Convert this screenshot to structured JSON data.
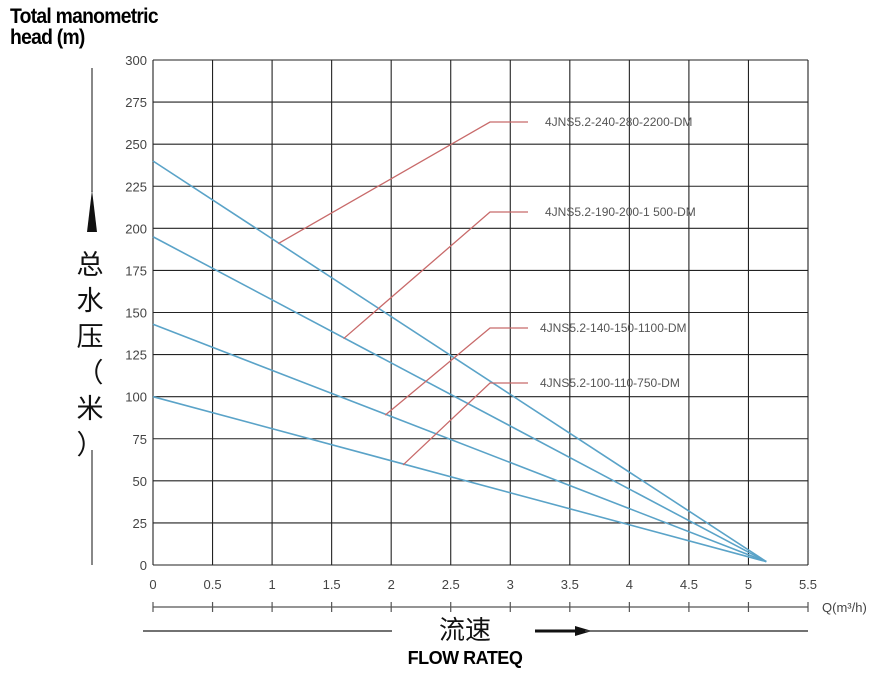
{
  "header": {
    "title_line1": "Total manometric",
    "title_line2": "head (m)",
    "ylabel_cn": [
      "总",
      "水",
      "压",
      "（",
      "米",
      "）"
    ],
    "xlabel_cn": "流速",
    "xlabel_en": "FLOW RATEQ",
    "x_unit": "Q(m³/h)"
  },
  "colors": {
    "series": "#5aa3c8",
    "leader": "#c86a6a",
    "grid": "#222222",
    "axis": "#555555"
  },
  "chart_data": {
    "type": "line",
    "title": "Total manometric head (m)",
    "xlabel": "FLOW RATEQ",
    "ylabel": "总水压（米）",
    "xlim": [
      0,
      5.5
    ],
    "ylim": [
      0,
      300
    ],
    "x_ticks": [
      "0",
      "0.5",
      "1",
      "1.5",
      "2",
      "2.5",
      "3",
      "3.5",
      "4",
      "4.5",
      "5",
      "5.5"
    ],
    "y_ticks": [
      "0",
      "25",
      "50",
      "75",
      "100",
      "125",
      "150",
      "175",
      "200",
      "225",
      "250",
      "275",
      "300"
    ],
    "grid": true,
    "series": [
      {
        "name": "4JNS5.2-240-280-2200-DM",
        "x": [
          0,
          5.15
        ],
        "y": [
          240,
          2
        ]
      },
      {
        "name": "4JNS5.2-190-200-1 500-DM",
        "x": [
          0,
          5.15
        ],
        "y": [
          195,
          2
        ]
      },
      {
        "name": "4JNS5.2-140-150-1100-DM",
        "x": [
          0,
          5.15
        ],
        "y": [
          143,
          2
        ]
      },
      {
        "name": "4JNS5.2-100-110-750-DM",
        "x": [
          0,
          5.15
        ],
        "y": [
          100,
          2
        ]
      }
    ]
  }
}
